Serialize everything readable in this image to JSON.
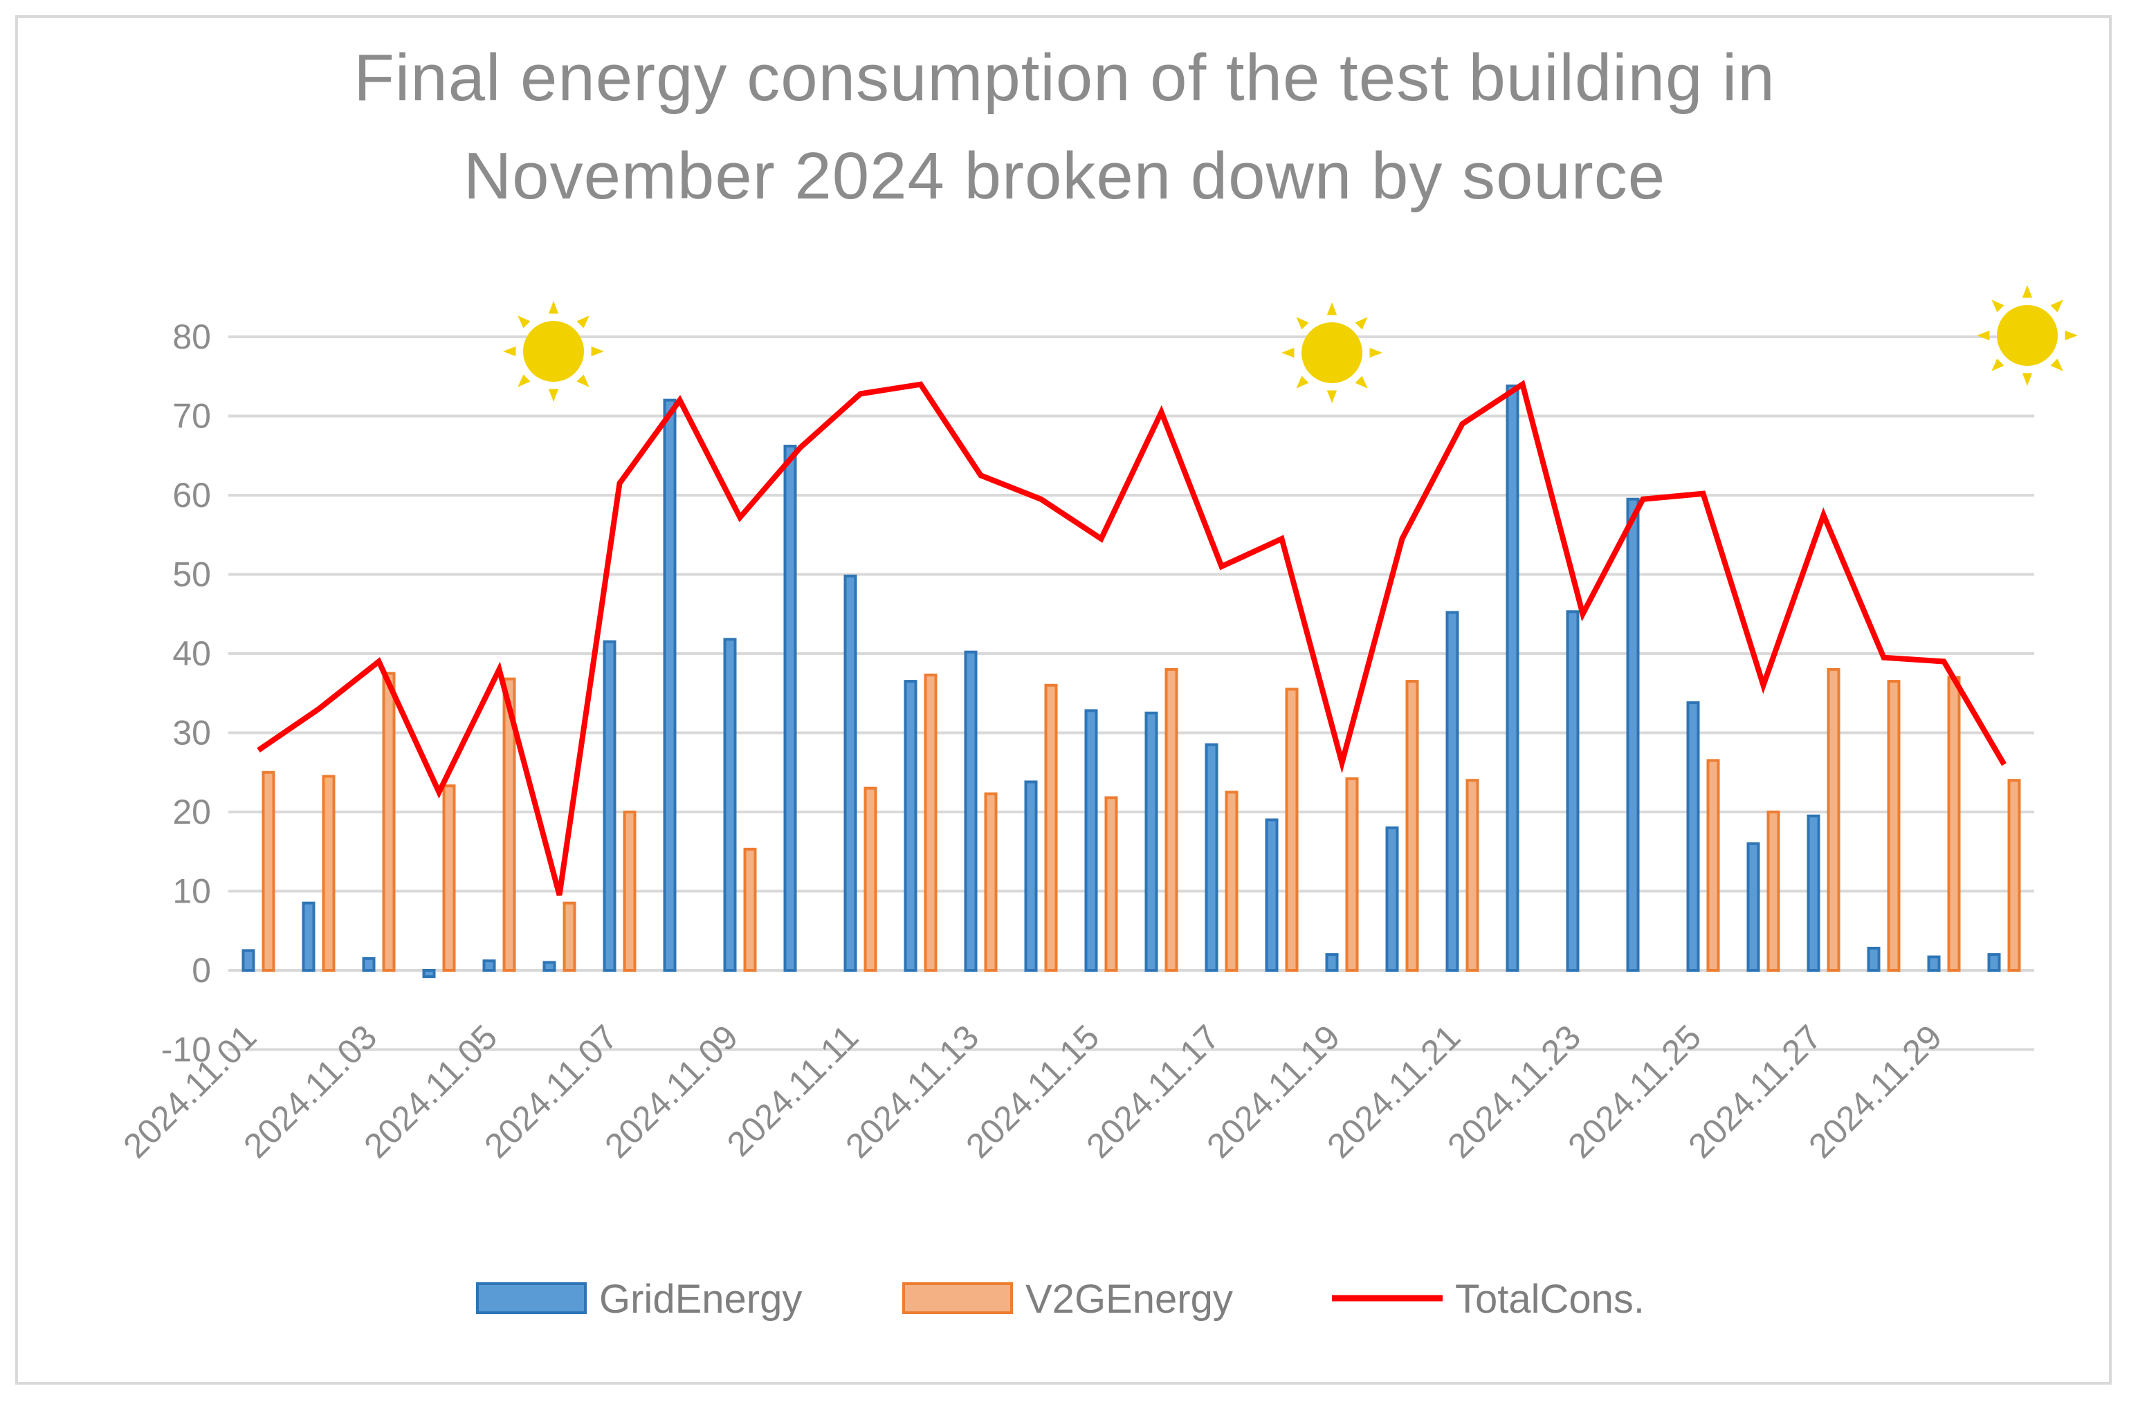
{
  "chart_data": {
    "type": "bar",
    "title_lines": [
      "Final energy consumption of the test building in",
      "November 2024 broken down by source"
    ],
    "xlabel": "",
    "ylabel": "",
    "ylim": [
      -10,
      80
    ],
    "yticks": [
      -10,
      0,
      10,
      20,
      30,
      40,
      50,
      60,
      70,
      80
    ],
    "grid": true,
    "legend_position": "bottom",
    "categories": [
      "2024.11.01",
      "2024.11.02",
      "2024.11.03",
      "2024.11.04",
      "2024.11.05",
      "2024.11.06",
      "2024.11.07",
      "2024.11.08",
      "2024.11.09",
      "2024.11.10",
      "2024.11.11",
      "2024.11.12",
      "2024.11.13",
      "2024.11.14",
      "2024.11.15",
      "2024.11.16",
      "2024.11.17",
      "2024.11.18",
      "2024.11.19",
      "2024.11.20",
      "2024.11.21",
      "2024.11.22",
      "2024.11.23",
      "2024.11.24",
      "2024.11.25",
      "2024.11.26",
      "2024.11.27",
      "2024.11.28",
      "2024.11.29",
      "2024.11.30"
    ],
    "xtick_labels": [
      "2024.11.01",
      "2024.11.03",
      "2024.11.05",
      "2024.11.07",
      "2024.11.09",
      "2024.11.11",
      "2024.11.13",
      "2024.11.15",
      "2024.11.17",
      "2024.11.19",
      "2024.11.21",
      "2024.11.23",
      "2024.11.25",
      "2024.11.27",
      "2024.11.29"
    ],
    "series": [
      {
        "name": "GridEnergy",
        "type": "bar",
        "color": "#5b9bd5",
        "border": "#2e75b6",
        "values": [
          2.5,
          8.5,
          1.5,
          -0.8,
          1.2,
          1.0,
          41.5,
          72.0,
          41.8,
          66.2,
          49.8,
          36.5,
          40.2,
          23.8,
          32.8,
          32.5,
          28.5,
          19.0,
          2.0,
          18.0,
          45.2,
          73.8,
          45.3,
          59.5,
          33.8,
          16.0,
          19.5,
          2.8,
          1.7,
          2.0
        ]
      },
      {
        "name": "V2GEnergy",
        "type": "bar",
        "color": "#f4b183",
        "border": "#ed7d31",
        "values": [
          25.0,
          24.5,
          37.5,
          23.3,
          36.8,
          8.5,
          20.0,
          0,
          15.3,
          0,
          23.0,
          37.3,
          22.3,
          36.0,
          21.8,
          38.0,
          22.5,
          35.5,
          24.2,
          36.5,
          24.0,
          0,
          0,
          0,
          26.5,
          20.0,
          38.0,
          36.5,
          37.0,
          24.0
        ]
      },
      {
        "name": "TotalCons.",
        "type": "line",
        "color": "#ff0000",
        "values": [
          27.8,
          33.0,
          39.0,
          22.5,
          38.0,
          9.5,
          61.5,
          72.0,
          57.2,
          66.0,
          72.8,
          74.0,
          62.5,
          59.5,
          54.5,
          70.5,
          51.0,
          54.5,
          26.2,
          54.5,
          69.0,
          74.0,
          45.0,
          59.5,
          60.2,
          36.0,
          57.5,
          39.5,
          39.0,
          26.0
        ]
      }
    ],
    "annotations": [
      {
        "type": "sun-icon",
        "category": "2024.11.06"
      },
      {
        "type": "sun-icon",
        "category": "2024.11.19"
      },
      {
        "type": "sun-icon",
        "category": "2024.11.30"
      }
    ]
  }
}
